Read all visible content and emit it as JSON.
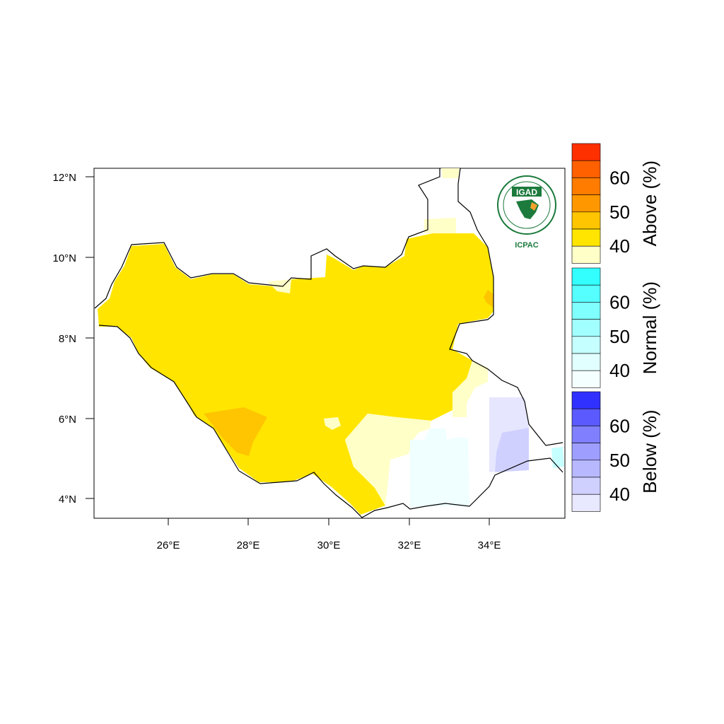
{
  "map": {
    "lon_ticks": [
      "26°E",
      "28°E",
      "30°E",
      "32°E",
      "34°E"
    ],
    "lat_ticks": [
      "12°N",
      "10°N",
      "8°N",
      "6°N",
      "4°N"
    ]
  },
  "logo": {
    "org_name": "IGAD",
    "center_name": "ICPAC"
  },
  "colorbars": [
    {
      "title": "Above (%)",
      "labels": [
        "60",
        "50",
        "40"
      ],
      "colors": [
        "#ff3000",
        "#ff6000",
        "#ff7c00",
        "#ff9800",
        "#ffc500",
        "#ffe500",
        "#ffffc8"
      ]
    },
    {
      "title": "Normal (%)",
      "labels": [
        "60",
        "50",
        "40"
      ],
      "colors": [
        "#33ffff",
        "#55ffff",
        "#80ffff",
        "#a2ffff",
        "#c6ffff",
        "#e2ffff",
        "#f4ffff"
      ]
    },
    {
      "title": "Below (%)",
      "labels": [
        "60",
        "50",
        "40"
      ],
      "colors": [
        "#3030ff",
        "#5a5aff",
        "#8080ff",
        "#9e9eff",
        "#b8b8ff",
        "#d0d0ff",
        "#e8e8ff"
      ]
    }
  ]
}
